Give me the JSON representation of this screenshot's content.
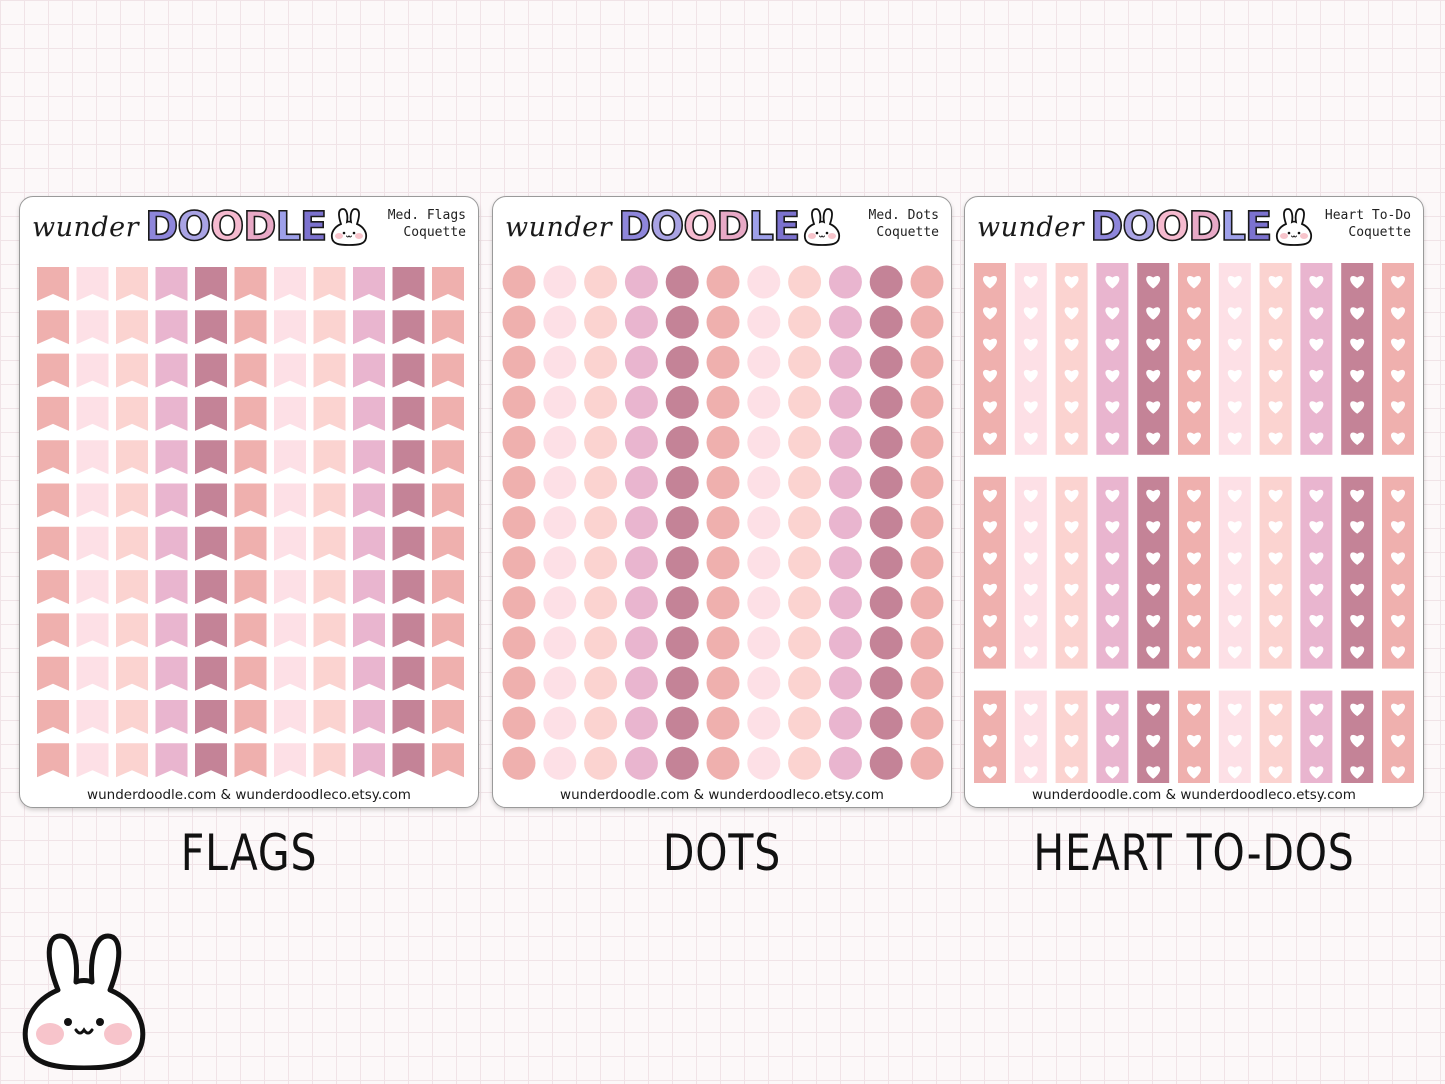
{
  "brand": {
    "script": "wunder",
    "doodle_letters": [
      "D",
      "O",
      "O",
      "D",
      "L",
      "E"
    ],
    "doodle_colors": [
      "#8e86db",
      "#a9a3e4",
      "#f5bacf",
      "#e8a9c6",
      "#9ea0ea",
      "#7c72cf"
    ]
  },
  "palette": [
    "#efb0ae",
    "#fde0e6",
    "#fbd3d0",
    "#e9b5cf",
    "#c48397",
    "#efb0ae",
    "#fde0e6",
    "#fbd3d0",
    "#e9b5cf",
    "#c48397",
    "#efb0ae"
  ],
  "sheets": [
    {
      "kind": "flags",
      "title": "Med. Flags\nCoquette",
      "footer": "wunderdoodle.com & wunderdoodleco.etsy.com",
      "caption": "FLAGS",
      "rows": 12
    },
    {
      "kind": "dots",
      "title": "Med. Dots\nCoquette",
      "footer": "wunderdoodle.com & wunderdoodleco.etsy.com",
      "caption": "DOTS",
      "rows": 13
    },
    {
      "kind": "hearts",
      "title": "Heart To-Do\nCoquette",
      "footer": "wunderdoodle.com & wunderdoodleco.etsy.com",
      "caption": "HEART TO-DOS",
      "blocks": [
        6,
        6,
        3
      ]
    }
  ],
  "icons": {
    "sheet_logo": "bunny-face-icon",
    "mascot": "bunny-mascot-icon",
    "todo_box": "heart-icon"
  }
}
